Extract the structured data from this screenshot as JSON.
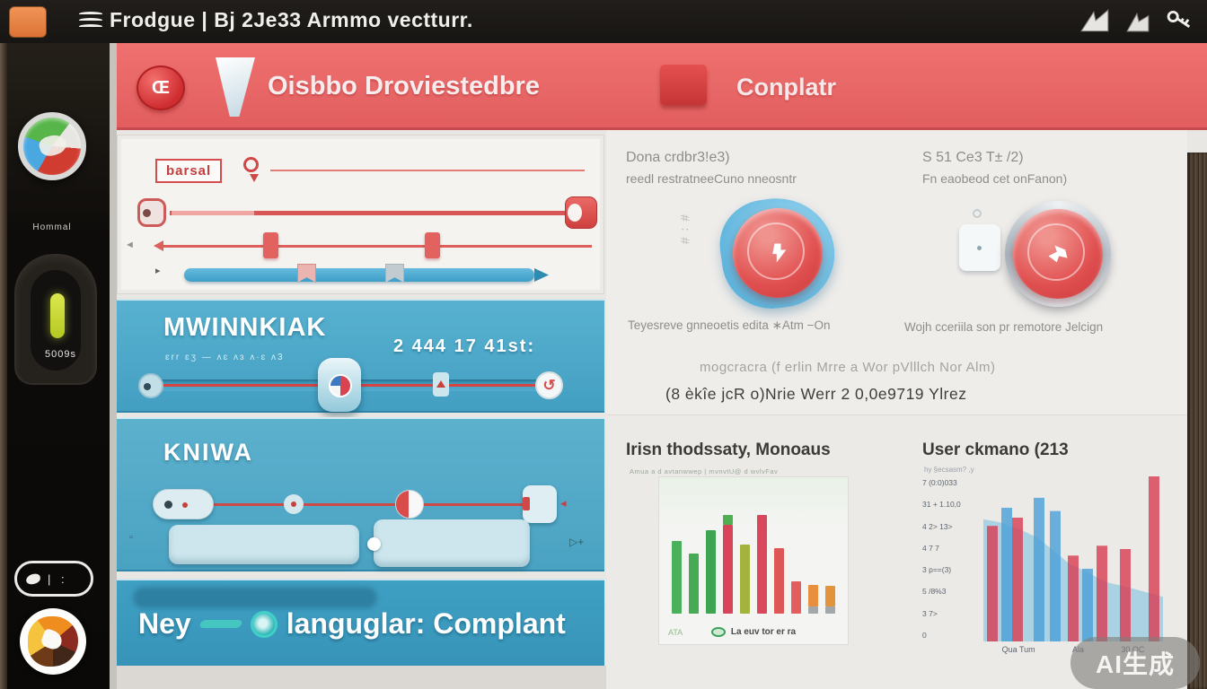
{
  "titlebar": {
    "title": "Frodgue | Bj 2Je33 Armmo vectturr."
  },
  "header": {
    "badge_glyph": "Œ",
    "left_label": "Oisbbo Droviestedbre",
    "right_label": "Conplatr"
  },
  "sidebar": {
    "app_label": "Hommal",
    "meter_label": "5009s",
    "pill_label": "| :"
  },
  "panels": {
    "slider_panel": {
      "tag_label": "barsal",
      "caret_left": "◄",
      "caret_dark": "▸"
    },
    "blue_panel_1": {
      "title": "MWINNKIAK",
      "subtitle": "ɛrr ɛʒ — ʌɛ ʌɜ ʌ·ɛ ʌ3",
      "right_text": "2 444  17  41st:",
      "knob_glyph": "↺"
    },
    "blue_panel_2": {
      "title": "KNIWA",
      "marker_left": "▫",
      "marker_right": "▷+",
      "arrow": "◂"
    },
    "footer_bar": {
      "text_left": "Ney",
      "text_right": "languglar: Complant"
    }
  },
  "right": {
    "col1_line1": "Dona crdbr3!e3)",
    "col1_line2": "reedl restratneeCuno nneosntr",
    "col2_line1": "S 51 Ce3 T± /2)",
    "col2_line2": "Fn eaobeod cet onFanon)",
    "vertical_label": "#∶#",
    "caption_left": "Teyesreve gnneoetis edita ∗Atm  −On",
    "caption_right": "Wojh cceriila son pr remotore  Jelcign",
    "note_line1": "mogcracra (f erlin Mrre a Wor pVlllch Nor Alm)",
    "note_line2": "(8 èkîe jcR o)Nrie Werr  2 0,0e9719 Ylrez"
  },
  "watermark": "AI生成",
  "chart_data": [
    {
      "type": "bar",
      "title": "Irisn thodssaty, Monoaus",
      "subtitle": "Amua a d avtanwwep | mvnvtU@ d wvlvFav",
      "legend": "La euv tor er ra",
      "xlabel": "ATA",
      "ylim": [
        0,
        100
      ],
      "grid": false,
      "bars": [
        {
          "segments": [
            {
              "color": "#3ca94e",
              "value": 63
            }
          ]
        },
        {
          "segments": [
            {
              "color": "#37a348",
              "value": 52
            }
          ]
        },
        {
          "segments": [
            {
              "color": "#2f9c44",
              "value": 73
            }
          ]
        },
        {
          "segments": [
            {
              "color": "#d5344c",
              "value": 77
            },
            {
              "color": "#41a844",
              "value": 9
            }
          ]
        },
        {
          "segments": [
            {
              "color": "#9cab2f",
              "value": 60
            }
          ]
        },
        {
          "segments": [
            {
              "color": "#d63850",
              "value": 86
            }
          ]
        },
        {
          "segments": [
            {
              "color": "#da4949",
              "value": 57
            }
          ]
        },
        {
          "segments": [
            {
              "color": "#df5052",
              "value": 28
            }
          ]
        },
        {
          "segments": [
            {
              "color": "#9aa0a4",
              "value": 6
            },
            {
              "color": "#e5862d",
              "value": 19
            }
          ]
        },
        {
          "segments": [
            {
              "color": "#9aa0a4",
              "value": 6
            },
            {
              "color": "#e08b2e",
              "value": 18
            }
          ]
        }
      ]
    },
    {
      "type": "bar+area",
      "title": "User ckmano (213",
      "subtitle": "hy §ecsasm? ,y",
      "ylim": [
        0,
        100
      ],
      "yticks": [
        "7 (0:0)033",
        "31 + 1.10,0",
        "4 2> 13>",
        "4 7 7",
        "3 p==(3)",
        "5 /8%3",
        "3 7>",
        "0"
      ],
      "xticks": [
        "Qua Tum",
        "Ala",
        "30 OC"
      ],
      "area": {
        "color": "#74bede",
        "opacity": 0.55,
        "points": [
          [
            0,
            74
          ],
          [
            10,
            72
          ],
          [
            20,
            68
          ],
          [
            30,
            63
          ],
          [
            38,
            56
          ],
          [
            48,
            47
          ],
          [
            58,
            42
          ],
          [
            68,
            36
          ],
          [
            80,
            33
          ],
          [
            100,
            27
          ]
        ]
      },
      "bars": [
        {
          "x": 2,
          "value": 70,
          "color": "#d83c52"
        },
        {
          "x": 10,
          "value": 81,
          "color": "#4aa0d8"
        },
        {
          "x": 16,
          "value": 75,
          "color": "#d83c52"
        },
        {
          "x": 28,
          "value": 87,
          "color": "#4aa0d8"
        },
        {
          "x": 37,
          "value": 79,
          "color": "#4aa0d8"
        },
        {
          "x": 47,
          "value": 52,
          "color": "#d83c52"
        },
        {
          "x": 55,
          "value": 44,
          "color": "#4aa0d8"
        },
        {
          "x": 63,
          "value": 58,
          "color": "#d83c52"
        },
        {
          "x": 76,
          "value": 56,
          "color": "#d83c52"
        },
        {
          "x": 92,
          "value": 100,
          "color": "#d83c52"
        }
      ]
    }
  ]
}
